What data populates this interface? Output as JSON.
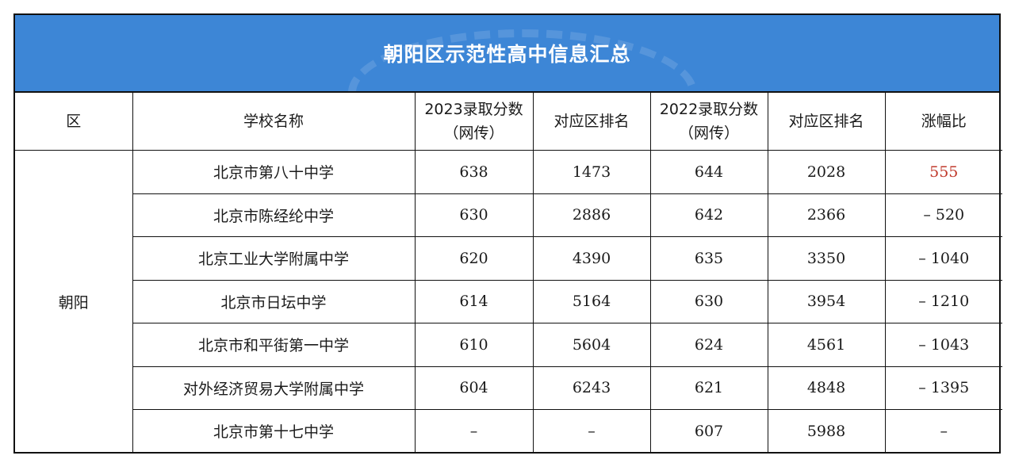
{
  "title": "朝阳区示范性高中信息汇总",
  "headers": {
    "district": "区",
    "school": "学校名称",
    "score2023_line1": "2023录取分数",
    "score2023_line2": "（网传）",
    "rank2023": "对应区排名",
    "score2022_line1": "2022录取分数",
    "score2022_line2": "（网传）",
    "rank2022": "对应区排名",
    "change": "涨幅比"
  },
  "district": "朝阳",
  "rows": [
    {
      "school": "北京市第八十中学",
      "score2023": "638",
      "rank2023": "1473",
      "score2022": "644",
      "rank2022": "2028",
      "change": "555"
    },
    {
      "school": "北京市陈经纶中学",
      "score2023": "630",
      "rank2023": "2886",
      "score2022": "642",
      "rank2022": "2366",
      "change": "– 520"
    },
    {
      "school": "北京工业大学附属中学",
      "score2023": "620",
      "rank2023": "4390",
      "score2022": "635",
      "rank2022": "3350",
      "change": "– 1040"
    },
    {
      "school": "北京市日坛中学",
      "score2023": "614",
      "rank2023": "5164",
      "score2022": "630",
      "rank2022": "3954",
      "change": "– 1210"
    },
    {
      "school": "北京市和平街第一中学",
      "score2023": "610",
      "rank2023": "5604",
      "score2022": "624",
      "rank2022": "4561",
      "change": "– 1043"
    },
    {
      "school": "对外经济贸易大学附属中学",
      "score2023": "604",
      "rank2023": "6243",
      "score2022": "621",
      "rank2022": "4848",
      "change": "– 1395"
    },
    {
      "school": "北京市第十七中学",
      "score2023": "–",
      "rank2023": "–",
      "score2022": "607",
      "rank2022": "5988",
      "change": "–"
    }
  ],
  "colors": {
    "header_bg": "#3d86d6",
    "positive_change": "#c0392b"
  }
}
